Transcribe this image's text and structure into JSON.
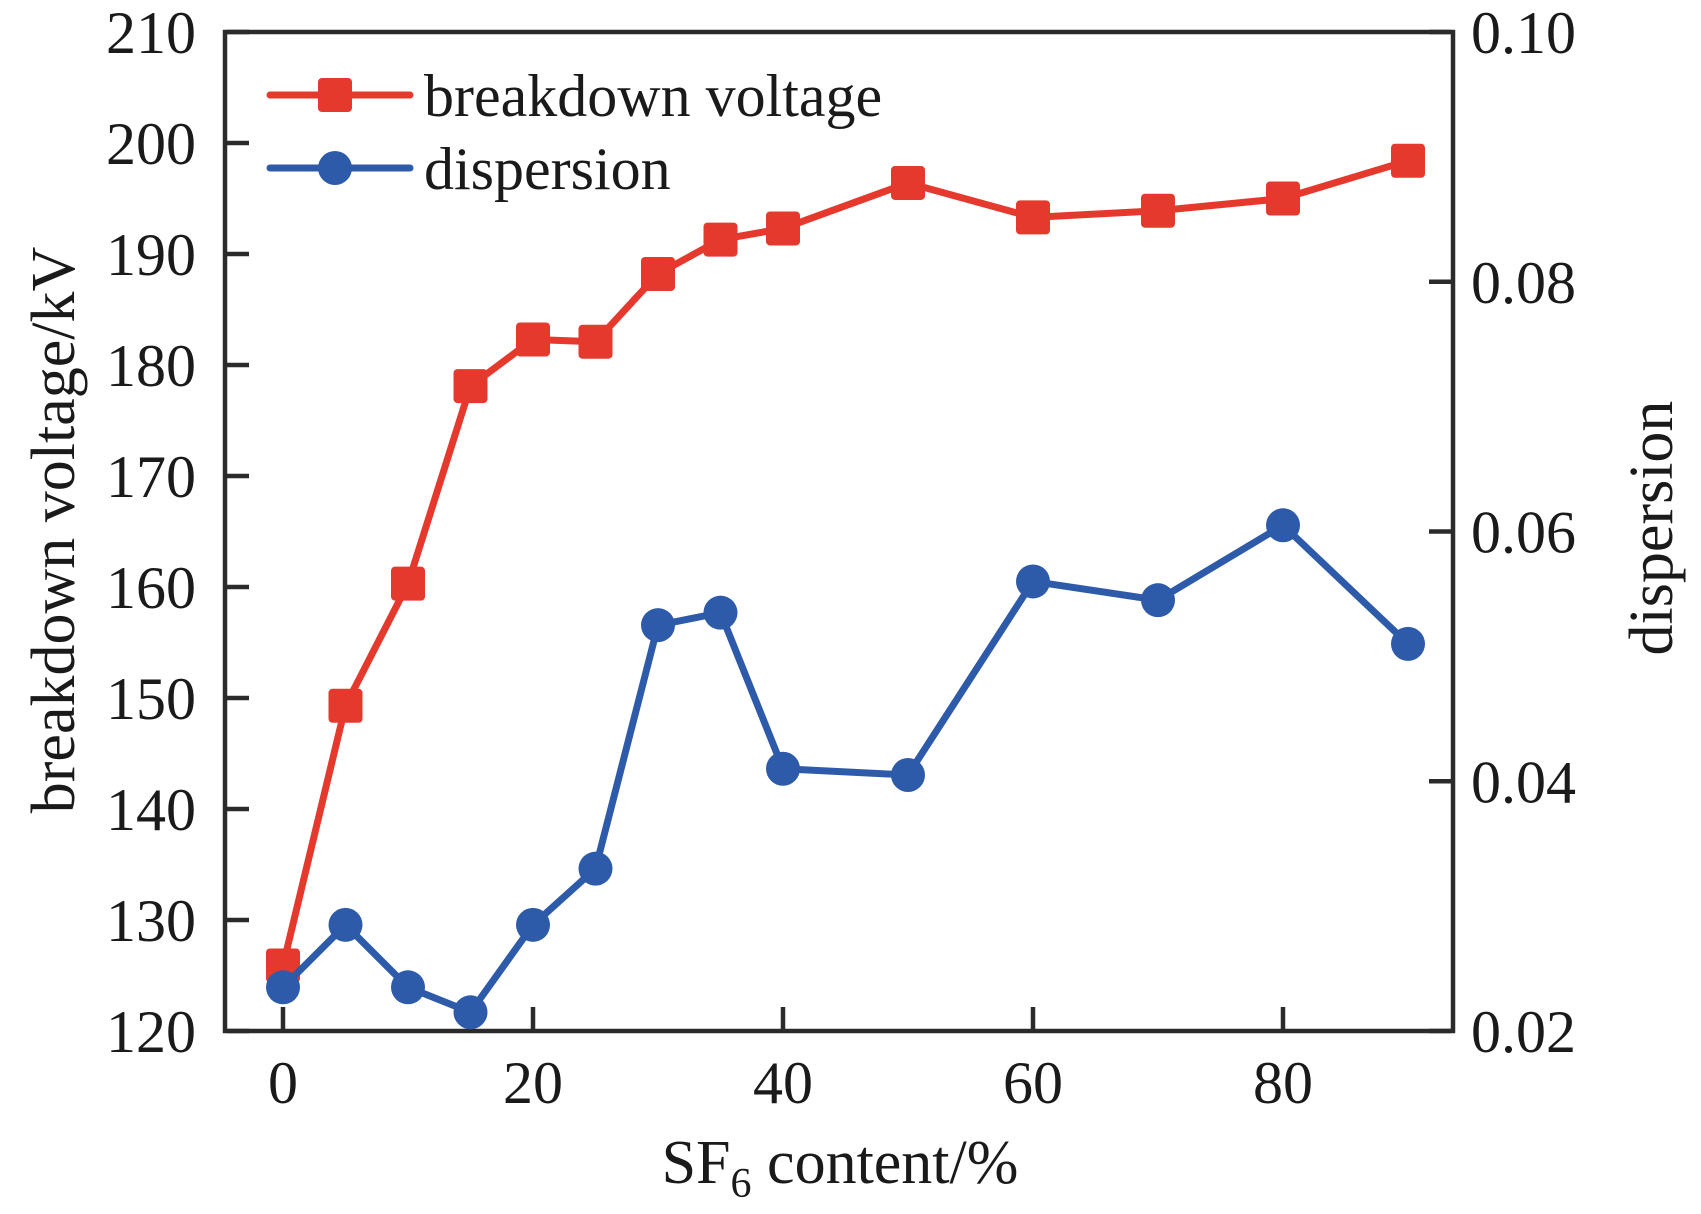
{
  "chart_data": {
    "type": "line",
    "title": "",
    "grid": false,
    "legend_position": "top-left-inside",
    "x": [
      0,
      5,
      10,
      15,
      20,
      25,
      30,
      35,
      40,
      50,
      60,
      70,
      80,
      90
    ],
    "series": [
      {
        "name": "breakdown voltage",
        "axis": "left",
        "marker": "square",
        "color": "#e6392e",
        "values": [
          125.9,
          149.3,
          160.3,
          178.1,
          182.3,
          182.1,
          188.2,
          191.3,
          192.3,
          196.4,
          193.3,
          193.9,
          195.0,
          198.4
        ]
      },
      {
        "name": "dispersion",
        "axis": "right",
        "marker": "circle",
        "color": "#2e5ba9",
        "values": [
          0.0235,
          0.0285,
          0.0235,
          0.0215,
          0.0285,
          0.033,
          0.0525,
          0.0535,
          0.041,
          0.0405,
          0.056,
          0.0545,
          0.0605,
          0.051
        ]
      }
    ],
    "x_axis": {
      "label": "SF6 content/%",
      "label_parts": [
        "SF",
        "6",
        " content/%"
      ],
      "tick_values": [
        0,
        20,
        40,
        60,
        80
      ],
      "range": [
        -4.64,
        93.6
      ]
    },
    "left_axis": {
      "label": "breakdown voltage/kV",
      "tick_values": [
        120,
        130,
        140,
        150,
        160,
        170,
        180,
        190,
        200,
        210
      ],
      "range": [
        120,
        210
      ],
      "decimals": 0
    },
    "right_axis": {
      "label": "dispersion",
      "tick_values": [
        0.02,
        0.04,
        0.06,
        0.08,
        0.1
      ],
      "range": [
        0.02,
        0.1
      ],
      "decimals": 2
    },
    "legend": [
      {
        "label": "breakdown voltage"
      },
      {
        "label": "dispersion"
      }
    ]
  }
}
